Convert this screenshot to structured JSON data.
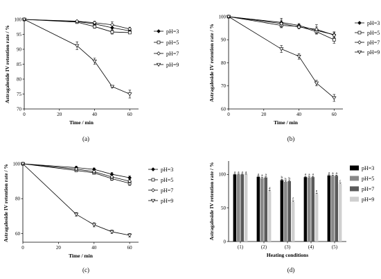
{
  "chart_data": [
    {
      "id": "a",
      "type": "line",
      "panel_label": "(a)",
      "xlabel": "Time / min",
      "ylabel": "Astragaloside IV retention rate / %",
      "xlim": [
        0,
        65
      ],
      "ylim": [
        70,
        100
      ],
      "xticks": [
        0,
        20,
        40,
        60
      ],
      "yticks": [
        70,
        75,
        80,
        85,
        90,
        95,
        100
      ],
      "x": [
        0,
        30,
        40,
        50,
        60
      ],
      "series": [
        {
          "name": "pH=3",
          "marker": "filled-diamond",
          "values": [
            100,
            99.3,
            98.5,
            97.2,
            96.2
          ],
          "errors": [
            0,
            0.3,
            0.6,
            0.9,
            0.5
          ]
        },
        {
          "name": "pH=5",
          "marker": "open-square",
          "values": [
            100,
            99.1,
            97.6,
            95.8,
            95.6
          ],
          "errors": [
            0,
            0.3,
            0.5,
            0.7,
            0.4
          ]
        },
        {
          "name": "pH=7",
          "marker": "open-diamond",
          "values": [
            100,
            99.4,
            98.9,
            98.2,
            96.8
          ],
          "errors": [
            0,
            0.3,
            0.5,
            1.0,
            0.6
          ]
        },
        {
          "name": "pH=9",
          "marker": "open-triangle-down",
          "values": [
            100,
            91.2,
            86.0,
            77.5,
            75.0
          ],
          "errors": [
            0,
            1.3,
            1.0,
            0.4,
            1.3
          ]
        }
      ]
    },
    {
      "id": "b",
      "type": "line",
      "panel_label": "(b)",
      "xlabel": "Time / min",
      "ylabel": "Astragaloside IV retention rate / %",
      "xlim": [
        0,
        65
      ],
      "ylim": [
        60,
        100
      ],
      "xticks": [
        0,
        20,
        40,
        60
      ],
      "yticks": [
        60,
        70,
        80,
        90,
        100
      ],
      "x": [
        0,
        30,
        40,
        50,
        60
      ],
      "series": [
        {
          "name": "pH=3",
          "marker": "filled-diamond",
          "values": [
            100,
            97.5,
            96.2,
            94.0,
            92.2
          ],
          "errors": [
            0,
            1.8,
            0.8,
            1.5,
            1.2
          ]
        },
        {
          "name": "pH=5",
          "marker": "open-square",
          "values": [
            100,
            96.2,
            95.8,
            93.5,
            90.0
          ],
          "errors": [
            0,
            1.0,
            0.7,
            1.0,
            1.5
          ]
        },
        {
          "name": "pH=7",
          "marker": "open-diamond",
          "values": [
            100,
            97.0,
            95.5,
            94.5,
            92.0
          ],
          "errors": [
            0,
            1.5,
            0.8,
            2.0,
            1.2
          ]
        },
        {
          "name": "pH=9",
          "marker": "open-triangle-down",
          "values": [
            100,
            86.0,
            82.8,
            71.2,
            64.8
          ],
          "errors": [
            0,
            1.5,
            1.2,
            1.2,
            1.5
          ]
        }
      ]
    },
    {
      "id": "c",
      "type": "line",
      "panel_label": "(c)",
      "xlabel": "Time / min",
      "ylabel": "Astragaloside IV retention rate / %",
      "xlim": [
        0,
        65
      ],
      "ylim": [
        55,
        100
      ],
      "xticks": [
        0,
        20,
        40,
        60
      ],
      "yticks": [
        60,
        80,
        100
      ],
      "x": [
        0,
        30,
        40,
        50,
        60
      ],
      "series": [
        {
          "name": "pH=3",
          "marker": "filled-diamond",
          "values": [
            100,
            97.8,
            96.8,
            94.0,
            92.0
          ],
          "errors": [
            0,
            0.8,
            0.8,
            1.0,
            1.0
          ]
        },
        {
          "name": "pH=5",
          "marker": "open-square",
          "values": [
            100,
            96.2,
            94.8,
            91.5,
            88.8
          ],
          "errors": [
            0,
            0.8,
            0.8,
            1.0,
            1.2
          ]
        },
        {
          "name": "pH=7",
          "marker": "open-diamond",
          "values": [
            100,
            97.0,
            95.5,
            92.5,
            90.0
          ],
          "errors": [
            0,
            0.8,
            0.8,
            1.0,
            1.0
          ]
        },
        {
          "name": "pH=9",
          "marker": "open-triangle-down",
          "values": [
            100,
            71.0,
            65.0,
            61.0,
            59.0
          ],
          "errors": [
            0,
            1.0,
            1.2,
            1.0,
            1.0
          ]
        }
      ]
    },
    {
      "id": "d",
      "type": "bar",
      "panel_label": "(d)",
      "xlabel": "Heating conditions",
      "ylabel": "Astragaloside IV retention rate / %",
      "ylim": [
        0,
        120
      ],
      "yticks": [
        0,
        50,
        100
      ],
      "categories": [
        "(1)",
        "(2)",
        "(3)",
        "(4)",
        "(5)"
      ],
      "series": [
        {
          "name": "pH=3",
          "color": "#000000",
          "values": [
            100,
            96.5,
            91.5,
            96.0,
            98.5
          ],
          "errors": [
            0.5,
            1.0,
            1.2,
            1.0,
            1.0
          ],
          "labels": [
            "a",
            "a",
            "b",
            "a",
            "a"
          ]
        },
        {
          "name": "pH=5",
          "color": "#888888",
          "values": [
            100,
            94.5,
            89.0,
            95.5,
            98.0
          ],
          "errors": [
            0.5,
            1.0,
            1.2,
            1.0,
            1.0
          ],
          "labels": [
            "a",
            "a",
            "b",
            "a",
            "a"
          ]
        },
        {
          "name": "pH=7",
          "color": "#5a5a5a",
          "values": [
            100,
            95.5,
            90.0,
            96.0,
            98.0
          ],
          "errors": [
            0.5,
            1.0,
            1.2,
            1.0,
            1.0
          ],
          "labels": [
            "a",
            "a",
            "b",
            "a",
            "a"
          ]
        },
        {
          "name": "pH=9",
          "color": "#cfcfcf",
          "values": [
            100,
            75.0,
            59.0,
            71.0,
            86.0
          ],
          "errors": [
            0.5,
            1.2,
            1.5,
            1.2,
            1.2
          ],
          "labels": [
            "a",
            "d",
            "f",
            "e",
            "c"
          ]
        }
      ]
    }
  ]
}
